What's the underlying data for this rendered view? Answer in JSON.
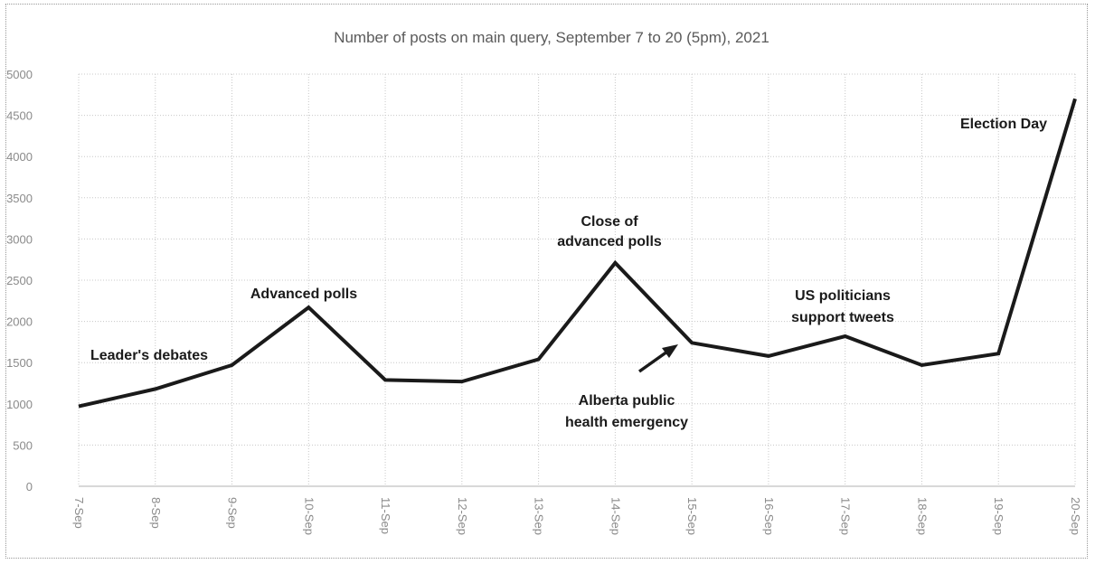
{
  "chart_data": {
    "type": "line",
    "title": "Number of posts on main query, September 7 to 20 (5pm), 2021",
    "xlabel": "",
    "ylabel": "",
    "categories": [
      "7-Sep",
      "8-Sep",
      "9-Sep",
      "10-Sep",
      "11-Sep",
      "12-Sep",
      "13-Sep",
      "14-Sep",
      "15-Sep",
      "16-Sep",
      "17-Sep",
      "18-Sep",
      "19-Sep",
      "20-Sep"
    ],
    "series": [
      {
        "values": [
          970,
          1180,
          1470,
          2170,
          1290,
          1270,
          1540,
          2710,
          1740,
          1580,
          1820,
          1470,
          1610,
          4700
        ]
      }
    ],
    "ylim": [
      0,
      5000
    ],
    "yticks": [
      0,
      500,
      1000,
      1500,
      2000,
      2500,
      3000,
      3500,
      4000,
      4500,
      5000
    ],
    "grid": true,
    "legend": "none",
    "line_color": "#1a1a1a",
    "annotations": [
      {
        "lines": [
          "Leader's debates"
        ],
        "at": "8-Sep"
      },
      {
        "lines": [
          "Advanced polls"
        ],
        "at": "10-Sep"
      },
      {
        "lines": [
          "Close of",
          "advanced polls"
        ],
        "at": "14-Sep"
      },
      {
        "lines": [
          "Alberta public",
          "health emergency"
        ],
        "at": "15-Sep",
        "arrow": true
      },
      {
        "lines": [
          "US politicians",
          "support tweets"
        ],
        "at": "17-Sep"
      },
      {
        "lines": [
          "Election Day"
        ],
        "at": "20-Sep"
      }
    ]
  }
}
